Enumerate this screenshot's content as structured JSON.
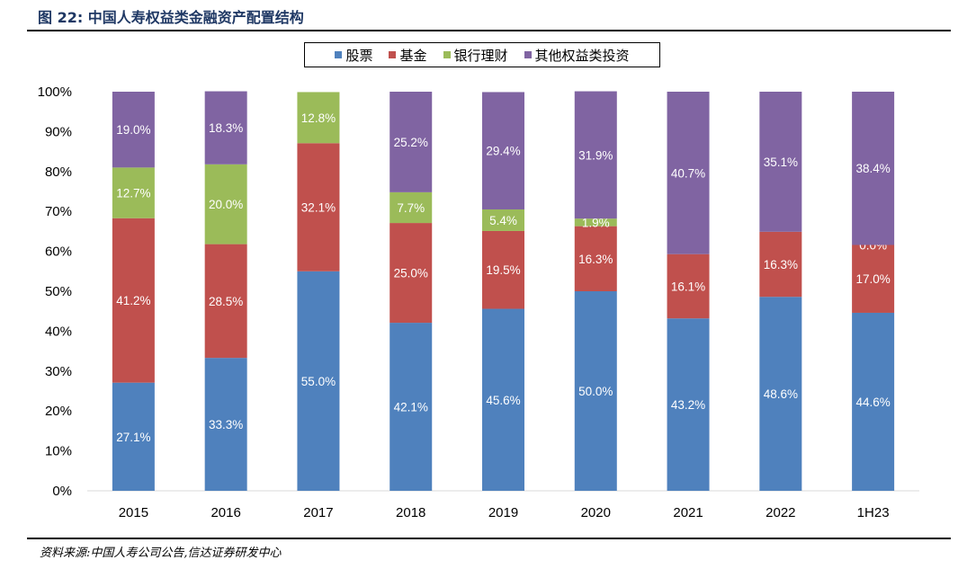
{
  "header": {
    "title": "图 22:  中国人寿权益类金融资产配置结构"
  },
  "footer": {
    "source": "资料来源:中国人寿公司公告,信达证券研发中心"
  },
  "chart_data": {
    "type": "bar",
    "stacked": true,
    "title": "中国人寿权益类金融资产配置结构",
    "xlabel": "",
    "ylabel": "",
    "ylim": [
      0,
      100
    ],
    "yticks": [
      "0%",
      "10%",
      "20%",
      "30%",
      "40%",
      "50%",
      "60%",
      "70%",
      "80%",
      "90%",
      "100%"
    ],
    "grid": false,
    "legend_position": "top-center",
    "categories": [
      "2015",
      "2016",
      "2017",
      "2018",
      "2019",
      "2020",
      "2021",
      "2022",
      "1H23"
    ],
    "series": [
      {
        "name": "股票",
        "color": "#4f81bd",
        "values": [
          27.1,
          33.3,
          55.0,
          42.1,
          45.6,
          50.0,
          43.2,
          48.6,
          44.6
        ],
        "labels": [
          "27.1%",
          "33.3%",
          "55.0%",
          "42.1%",
          "45.6%",
          "50.0%",
          "43.2%",
          "48.6%",
          "44.6%"
        ]
      },
      {
        "name": "基金",
        "color": "#c0504d",
        "values": [
          41.2,
          28.5,
          32.1,
          25.0,
          19.5,
          16.3,
          16.1,
          16.3,
          17.0
        ],
        "labels": [
          "41.2%",
          "28.5%",
          "32.1%",
          "25.0%",
          "19.5%",
          "16.3%",
          "16.1%",
          "16.3%",
          "17.0%"
        ]
      },
      {
        "name": "银行理财",
        "color": "#9bbb59",
        "values": [
          12.7,
          20.0,
          12.8,
          7.7,
          5.4,
          1.9,
          0,
          0,
          0.0
        ],
        "labels": [
          "12.7%",
          "20.0%",
          "12.8%",
          "7.7%",
          "5.4%",
          "1.9%",
          null,
          null,
          "0.0%"
        ]
      },
      {
        "name": "其他权益类投资",
        "color": "#8064a2",
        "values": [
          19.0,
          18.3,
          0,
          25.2,
          29.4,
          31.9,
          40.7,
          35.1,
          38.4
        ],
        "labels": [
          "19.0%",
          "18.3%",
          null,
          "25.2%",
          "29.4%",
          "31.9%",
          "40.7%",
          "35.1%",
          "38.4%"
        ]
      }
    ]
  }
}
